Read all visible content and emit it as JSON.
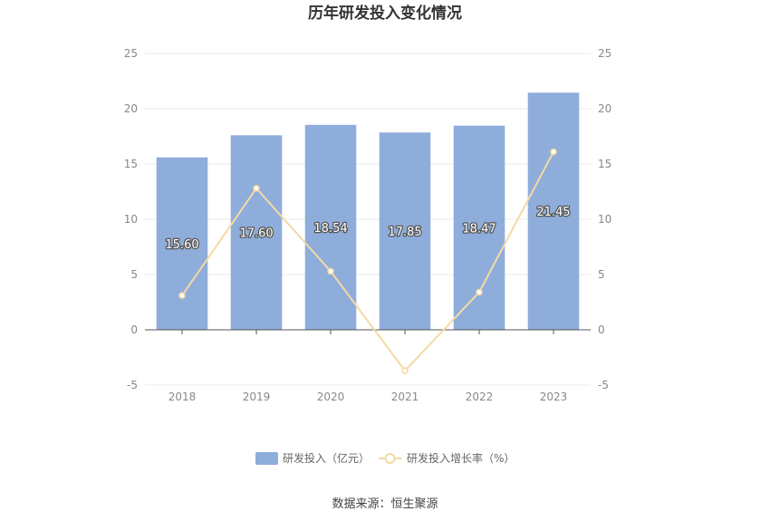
{
  "title": "历年研发投入变化情况",
  "source": "数据来源：恒生聚源",
  "chart_data": {
    "type": "bar",
    "title": "历年研发投入变化情况",
    "categories": [
      "2018",
      "2019",
      "2020",
      "2021",
      "2022",
      "2023"
    ],
    "series": [
      {
        "name": "研发投入（亿元）",
        "type": "bar",
        "axis": "left",
        "color": "#8EADDB",
        "values": [
          15.6,
          17.6,
          18.54,
          17.85,
          18.47,
          21.45
        ],
        "labels": [
          "15.60",
          "17.60",
          "18.54",
          "17.85",
          "18.47",
          "21.45"
        ]
      },
      {
        "name": "研发投入增长率（%）",
        "type": "line",
        "axis": "right",
        "color": "#F5D9A3",
        "values": [
          3.1,
          12.8,
          5.3,
          -3.7,
          3.4,
          16.1
        ]
      }
    ],
    "ylim": [
      -5,
      25
    ],
    "y2lim": [
      -5,
      25
    ],
    "yticks": [
      "25",
      "20",
      "15",
      "10",
      "5",
      "0",
      "-5"
    ],
    "y2ticks": [
      "25",
      "20",
      "15",
      "10",
      "5",
      "0",
      "-5"
    ],
    "grid": true,
    "legend_position": "bottom"
  }
}
